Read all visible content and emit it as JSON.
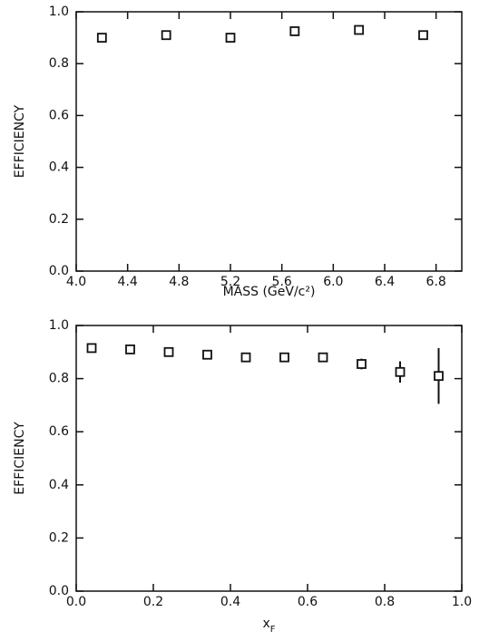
{
  "chart_data": [
    {
      "type": "scatter",
      "xlabel": "MASS (GeV/c²)",
      "ylabel": "EFFICIENCY",
      "x": [
        4.2,
        4.7,
        5.2,
        5.7,
        6.2,
        6.7
      ],
      "values": [
        0.9,
        0.91,
        0.9,
        0.925,
        0.93,
        0.91
      ],
      "errors": [
        null,
        null,
        null,
        null,
        null,
        null
      ],
      "color": "#111111",
      "xlim": [
        4.0,
        7.0
      ],
      "xticks": [
        {
          "value": 4.0,
          "label": "4.0"
        },
        4.4,
        4.8,
        5.2,
        5.6,
        {
          "value": 6.0,
          "label": "6.0"
        },
        6.4,
        6.8
      ],
      "ylim": [
        0.0,
        1.0
      ],
      "yticks": [
        {
          "value": 0,
          "label": "0.0"
        },
        0.2,
        0.4,
        0.6,
        0.8,
        {
          "value": 1,
          "label": "1.0"
        }
      ]
    },
    {
      "type": "scatter",
      "xlabel": "x",
      "xlabel_subscript": "F",
      "ylabel": "EFFICIENCY",
      "x": [
        0.04,
        0.14,
        0.24,
        0.34,
        0.44,
        0.54,
        0.64,
        0.74,
        0.84,
        0.94
      ],
      "values": [
        0.915,
        0.91,
        0.9,
        0.89,
        0.88,
        0.88,
        0.88,
        0.855,
        0.825,
        0.81
      ],
      "errors": [
        null,
        null,
        null,
        null,
        null,
        null,
        null,
        0.02,
        0.04,
        0.105
      ],
      "color": "#111111",
      "xlim": [
        0.0,
        1.0
      ],
      "xticks": [
        {
          "value": 0,
          "label": "0.0"
        },
        0.2,
        0.4,
        0.6,
        0.8,
        {
          "value": 1,
          "label": "1.0"
        }
      ],
      "ylim": [
        0.0,
        1.0
      ],
      "yticks": [
        {
          "value": 0,
          "label": "0.0"
        },
        0.2,
        0.4,
        0.6,
        0.8,
        {
          "value": 1,
          "label": "1.0"
        }
      ]
    }
  ]
}
